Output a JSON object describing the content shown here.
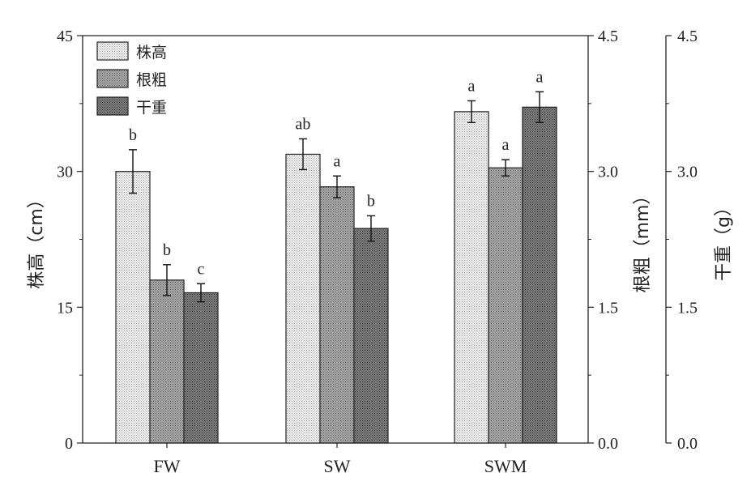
{
  "chart_data": {
    "type": "bar",
    "categories": [
      "FW",
      "SW",
      "SWM"
    ],
    "series": [
      {
        "name": "株高",
        "axis": "left",
        "values": [
          30.0,
          31.9,
          36.6
        ],
        "errors": [
          2.4,
          1.7,
          1.2
        ],
        "letters": [
          "b",
          "ab",
          "a"
        ],
        "color": "#e6e6e6"
      },
      {
        "name": "根粗",
        "axis": "right1",
        "values": [
          1.8,
          2.83,
          3.04
        ],
        "errors": [
          0.17,
          0.12,
          0.09
        ],
        "letters": [
          "b",
          "a",
          "a"
        ],
        "color": "#909090"
      },
      {
        "name": "干重",
        "axis": "right2",
        "values": [
          1.66,
          2.37,
          3.71
        ],
        "errors": [
          0.1,
          0.14,
          0.17
        ],
        "letters": [
          "c",
          "b",
          "a"
        ],
        "color": "#6a6a6a"
      }
    ],
    "axes": {
      "left": {
        "label": "株高（cm）",
        "ylim": [
          0,
          45
        ],
        "ticks": [
          "0",
          "15",
          "30",
          "45"
        ]
      },
      "right1": {
        "label": "根粗（mm）",
        "ylim": [
          0,
          4.5
        ],
        "ticks": [
          "0.0",
          "1.5",
          "3.0",
          "4.5"
        ]
      },
      "right2": {
        "label": "干重（g）",
        "ylim": [
          0,
          4.5
        ],
        "ticks": [
          "0.0",
          "1.5",
          "3.0",
          "4.5"
        ]
      }
    },
    "legend_position": "top-left",
    "grid": false
  }
}
